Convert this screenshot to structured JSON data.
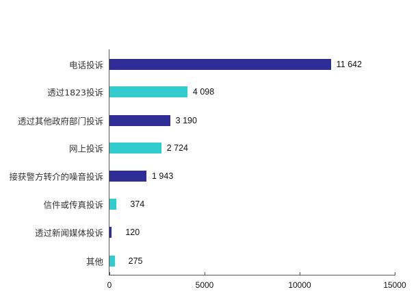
{
  "chart_data": {
    "type": "bar",
    "orientation": "horizontal",
    "title": "",
    "xlabel": "",
    "ylabel": "",
    "categories": [
      "电话投诉",
      "透过1823投诉",
      "透过其他政府部门投诉",
      "网上投诉",
      "接获警方转介的噪音投诉",
      "信件或传真投诉",
      "透过新闻媒体投诉",
      "其他"
    ],
    "values": [
      11642,
      4098,
      3190,
      2724,
      1943,
      374,
      120,
      275
    ],
    "value_labels": [
      "11 642",
      "4 098",
      "3 190",
      "2 724",
      "1 943",
      "374",
      "120",
      "275"
    ],
    "bar_colors": [
      "#2e2e96",
      "#33cccc",
      "#2e2e96",
      "#33cccc",
      "#2e2e96",
      "#33cccc",
      "#2e2e96",
      "#33cccc"
    ],
    "xlim": [
      0,
      15000
    ],
    "xticks": [
      "0",
      "5000",
      "10000",
      "15000"
    ],
    "grid": false,
    "legend": null
  }
}
